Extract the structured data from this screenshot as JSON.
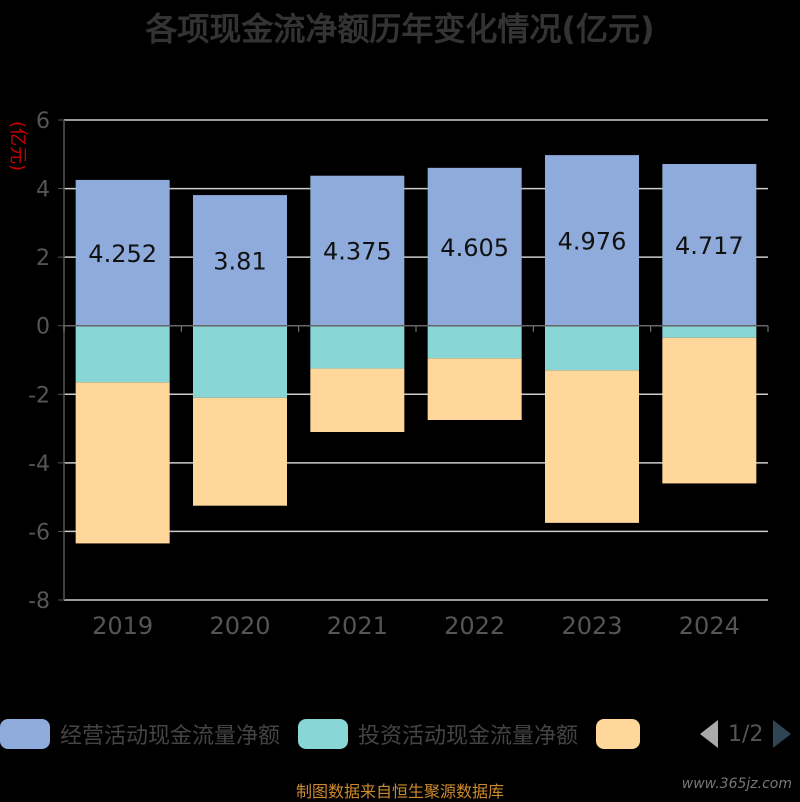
{
  "chart_data": {
    "type": "bar",
    "title": "各项现金流净额历年变化情况(亿元)",
    "ylabel": "(亿元)",
    "categories": [
      "2019",
      "2020",
      "2021",
      "2022",
      "2023",
      "2024"
    ],
    "series": [
      {
        "name": "经营活动现金流量净额",
        "values": [
          4.252,
          3.81,
          4.375,
          4.605,
          4.976,
          4.717
        ],
        "color": "#8eabdc"
      },
      {
        "name": "投资活动现金流量净额",
        "values": [
          -1.65,
          -2.1,
          -1.25,
          -0.95,
          -1.3,
          -0.35
        ],
        "color": "#88d6d6"
      },
      {
        "name": "",
        "values": [
          -4.7,
          -3.15,
          -1.85,
          -1.8,
          -4.45,
          -4.25
        ],
        "color": "#ffd79b"
      }
    ],
    "data_labels": [
      "4.252",
      "3.81",
      "4.375",
      "4.605",
      "4.976",
      "4.717"
    ],
    "ylim": [
      -8,
      6
    ],
    "yticks": [
      6,
      4,
      2,
      0,
      -2,
      -4,
      -6,
      -8
    ],
    "grid": true,
    "legend_position": "bottom"
  },
  "legend": {
    "pager": "1/2"
  },
  "footer": {
    "source": "制图数据来自恒生聚源数据库",
    "watermark": "www.365jz.com"
  }
}
